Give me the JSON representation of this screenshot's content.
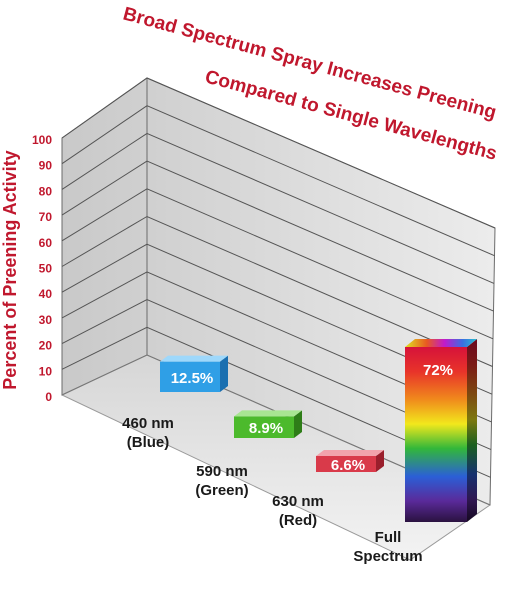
{
  "chart_data": {
    "type": "bar",
    "title_lines": [
      "Broad Spectrum Spray Increases Preening",
      "Compared to Single Wavelengths"
    ],
    "xlabel": "",
    "ylabel": "Percent of Preening Activity",
    "ylim": [
      0,
      100
    ],
    "yticks": [
      "0",
      "10",
      "20",
      "30",
      "40",
      "50",
      "60",
      "70",
      "80",
      "90",
      "100"
    ],
    "grid": true,
    "categories": [
      [
        "460 nm",
        "(Blue)"
      ],
      [
        "590 nm",
        "(Green)"
      ],
      [
        "630 nm",
        "(Red)"
      ],
      [
        "Full",
        "Spectrum"
      ]
    ],
    "values": [
      12.5,
      8.9,
      6.6,
      72
    ],
    "value_labels": [
      "12.5%",
      "8.9%",
      "6.6%",
      "72%"
    ],
    "colors": [
      "#2f9fe6",
      "#4cba2c",
      "#d93a4a",
      "spectrum"
    ]
  }
}
